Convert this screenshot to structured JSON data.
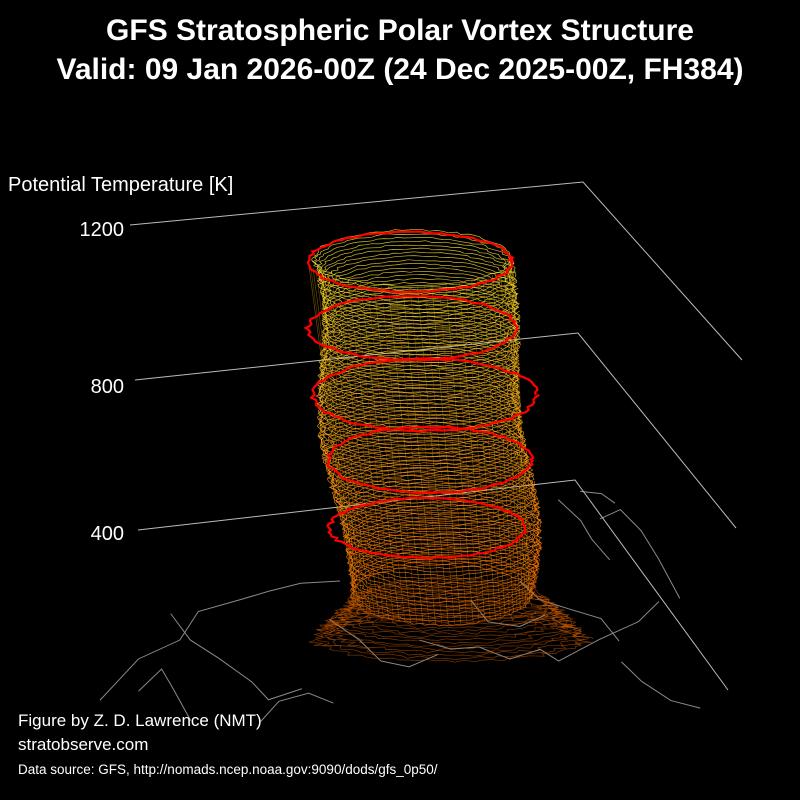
{
  "chart_data": {
    "type": "3d-isosurface",
    "title": "GFS Stratospheric Polar Vortex Structure",
    "subtitle": "Valid: 09 Jan 2026-00Z  (24 Dec 2025-00Z, FH384)",
    "zlabel": "Potential Temperature [K]",
    "z_ticks": [
      400,
      800,
      1200
    ],
    "grid": true,
    "colors": {
      "highlight_contours": "#ff0000",
      "upper_contours": "#ffee33",
      "lower_contours": "#ff6a00",
      "grid_lines": "#bbbbbb",
      "coastlines": "#8a8a8a"
    }
  },
  "credits": {
    "author": "Figure by Z. D. Lawrence (NMT)",
    "site": "stratobserve.com",
    "source": "Data source: GFS, http://nomads.ncep.noaa.gov:9090/dods/gfs_0p50/"
  }
}
